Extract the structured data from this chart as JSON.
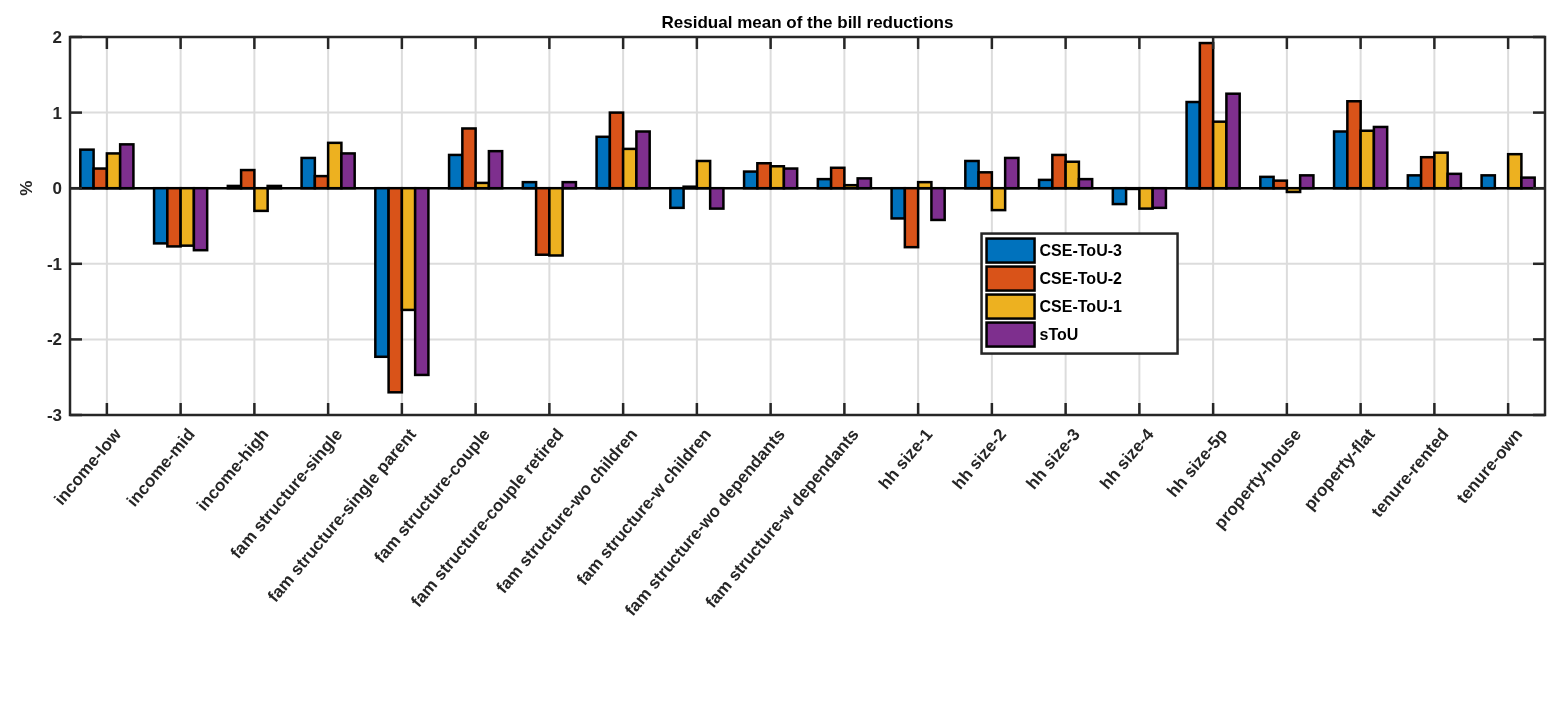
{
  "chart_data": {
    "type": "bar",
    "title": "Residual mean of the bill reductions",
    "ylabel": "%",
    "categories": [
      "income-low",
      "income-mid",
      "income-high",
      "fam structure-single",
      "fam structure-single parent",
      "fam structure-couple",
      "fam structure-couple retired",
      "fam structure-wo children",
      "fam structure-w children",
      "fam structure-wo dependants",
      "fam structure-w dependants",
      "hh size-1",
      "hh size-2",
      "hh size-3",
      "hh size-4",
      "hh size-5p",
      "property-house",
      "property-flat",
      "tenure-rented",
      "tenure-own"
    ],
    "series": [
      {
        "name": "CSE-ToU-3",
        "color": "#0072bd",
        "values": [
          0.51,
          -0.73,
          0.03,
          0.4,
          -2.23,
          0.44,
          0.08,
          0.68,
          -0.26,
          0.22,
          0.12,
          -0.4,
          0.36,
          0.11,
          -0.21,
          1.14,
          0.15,
          0.75,
          0.17,
          0.17
        ]
      },
      {
        "name": "CSE-ToU-2",
        "color": "#d95319",
        "values": [
          0.26,
          -0.77,
          0.24,
          0.16,
          -2.7,
          0.79,
          -0.88,
          1.0,
          0.02,
          0.33,
          0.27,
          -0.78,
          0.21,
          0.44,
          -0.01,
          1.92,
          0.1,
          1.15,
          0.41,
          0.0
        ]
      },
      {
        "name": "CSE-ToU-1",
        "color": "#edb120",
        "values": [
          0.46,
          -0.76,
          -0.3,
          0.6,
          -1.61,
          0.07,
          -0.89,
          0.52,
          0.36,
          0.29,
          0.04,
          0.08,
          -0.29,
          0.35,
          -0.27,
          0.88,
          -0.05,
          0.76,
          0.47,
          0.45
        ]
      },
      {
        "name": "sToU",
        "color": "#7e2f8e",
        "values": [
          0.58,
          -0.82,
          0.03,
          0.46,
          -2.47,
          0.49,
          0.08,
          0.75,
          -0.27,
          0.26,
          0.13,
          -0.42,
          0.4,
          0.12,
          -0.26,
          1.25,
          0.17,
          0.81,
          0.19,
          0.14
        ]
      }
    ],
    "ylim": [
      -3,
      2
    ],
    "yticks": [
      -3,
      -2,
      -1,
      0,
      1,
      2
    ],
    "grid": true,
    "legend": "right"
  }
}
